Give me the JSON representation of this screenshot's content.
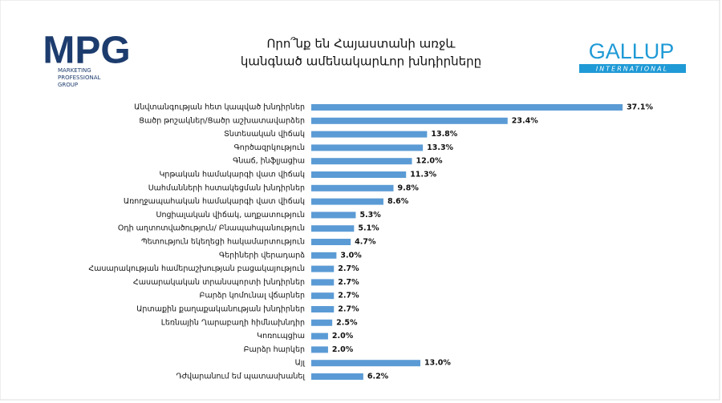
{
  "branding": {
    "left_logo": "MPG",
    "left_logo_lines": [
      "MARKETING",
      "PROFESSIONAL",
      "GROUP"
    ],
    "right_logo": "GALLUP",
    "right_logo_sub": "INTERNATIONAL"
  },
  "chart_data": {
    "type": "hbar",
    "title": [
      "Որո՞նք են Հայաստանի առջև",
      "կանգնած ամենակարևոր խնդիրները"
    ],
    "color": "#5b9bd5",
    "categories": [
      "Անվտանգության հետ կապված խնդիրներ",
      "Ցածր թոշակներ/Ցածր աշխատավարձեր",
      "Տնտեսական վիճակ",
      "Գործազրկություն",
      "Գնաճ, ինֆլյացիա",
      "Կրթական համակարգի վատ վիճակ",
      "Սահմանների հստակեցման խնդիրներ",
      "Առողջապահական համակարգի վատ վիճակ",
      "Սոցիալական վիճակ, աղքատություն",
      "Օդի աղտոտվածություն/ Բնապահպանություն",
      "Պետություն եկեղեցի հակամարտություն",
      "Գերիների վերադարձ",
      "Հասարակության համերաշխության բացակայություն",
      "Հասարակական տրանսպորտի խնդիրներ",
      "Բարձր կոմունալ վճարներ",
      "Արտաքին քաղաքականության խնդիրներ",
      "Լեռնային Ղարաբաղի հիմնախնդիր",
      "Կոռուպցիա",
      "Բարձր հարկեր",
      "Այլ",
      "Դժվարանում եմ պատասխանել"
    ],
    "values": [
      37.1,
      23.4,
      13.8,
      13.3,
      12.0,
      11.3,
      9.8,
      8.6,
      5.3,
      5.1,
      4.7,
      3.0,
      2.7,
      2.7,
      2.7,
      2.7,
      2.5,
      2.0,
      2.0,
      13.0,
      6.2
    ],
    "value_labels": [
      "37.1%",
      "23.4%",
      "13.8%",
      "13.3%",
      "12.0%",
      "11.3%",
      "9.8%",
      "8.6%",
      "5.3%",
      "5.1%",
      "4.7%",
      "3.0%",
      "2.7%",
      "2.7%",
      "2.7%",
      "2.7%",
      "2.5%",
      "2.0%",
      "2.0%",
      "13.0%",
      "6.2%"
    ]
  }
}
